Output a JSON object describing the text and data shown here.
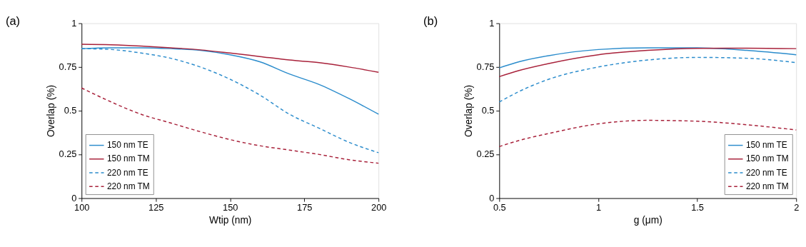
{
  "chart_data": [
    {
      "type": "line",
      "title": "(a)",
      "xlabel": "Wtip (nm)",
      "ylabel": "Overlap (%)",
      "xlim": [
        100,
        200
      ],
      "xticks": [
        100,
        125,
        150,
        175,
        200
      ],
      "ylim": [
        0,
        1
      ],
      "yticks": [
        0,
        0.25,
        0.5,
        0.75,
        1
      ],
      "grid": false,
      "legend": "bottom left",
      "marker": "none",
      "x": [
        100,
        110,
        120,
        130,
        140,
        150,
        160,
        170,
        180,
        190,
        200
      ],
      "series": [
        {
          "name": "150 nm TE",
          "color": "#2b8ccc",
          "line_style": "solid",
          "values": [
            0.855,
            0.86,
            0.86,
            0.855,
            0.845,
            0.82,
            0.78,
            0.71,
            0.65,
            0.57,
            0.48
          ]
        },
        {
          "name": "150 nm TM",
          "color": "#a8213a",
          "line_style": "solid",
          "values": [
            0.88,
            0.877,
            0.87,
            0.86,
            0.848,
            0.83,
            0.81,
            0.79,
            0.775,
            0.75,
            0.72
          ]
        },
        {
          "name": "220 nm TE",
          "color": "#2b8ccc",
          "line_style": "dashed",
          "values": [
            0.855,
            0.85,
            0.83,
            0.8,
            0.75,
            0.68,
            0.59,
            0.48,
            0.4,
            0.32,
            0.26
          ]
        },
        {
          "name": "220 nm TM",
          "color": "#a8213a",
          "line_style": "dashed",
          "values": [
            0.63,
            0.55,
            0.48,
            0.43,
            0.38,
            0.335,
            0.3,
            0.275,
            0.25,
            0.22,
            0.2
          ]
        }
      ]
    },
    {
      "type": "line",
      "title": "(b)",
      "xlabel": "g (μm)",
      "ylabel": "Overlap (%)",
      "xlim": [
        0.5,
        2
      ],
      "xticks": [
        0.5,
        1,
        1.5,
        2
      ],
      "ylim": [
        0,
        1
      ],
      "yticks": [
        0,
        0.25,
        0.5,
        0.75,
        1
      ],
      "grid": false,
      "legend": "bottom right",
      "marker": "none",
      "x": [
        0.5,
        0.6,
        0.75,
        1,
        1.25,
        1.5,
        1.75,
        2
      ],
      "series": [
        {
          "name": "150 nm TE",
          "color": "#2b8ccc",
          "line_style": "solid",
          "values": [
            0.745,
            0.78,
            0.815,
            0.85,
            0.86,
            0.86,
            0.845,
            0.82
          ]
        },
        {
          "name": "150 nm TM",
          "color": "#a8213a",
          "line_style": "solid",
          "values": [
            0.695,
            0.73,
            0.77,
            0.82,
            0.845,
            0.857,
            0.858,
            0.855
          ]
        },
        {
          "name": "220 nm TE",
          "color": "#2b8ccc",
          "line_style": "dashed",
          "values": [
            0.55,
            0.61,
            0.68,
            0.75,
            0.79,
            0.805,
            0.8,
            0.775
          ]
        },
        {
          "name": "220 nm TM",
          "color": "#a8213a",
          "line_style": "dashed",
          "values": [
            0.295,
            0.33,
            0.37,
            0.425,
            0.445,
            0.44,
            0.42,
            0.39
          ]
        }
      ]
    }
  ]
}
